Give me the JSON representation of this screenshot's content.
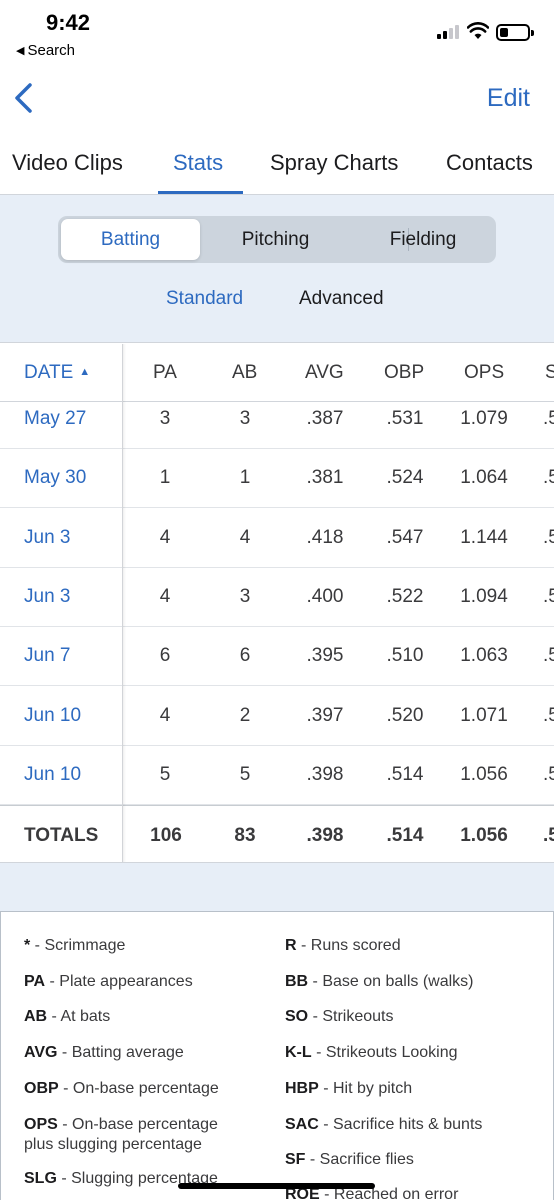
{
  "status_bar": {
    "time": "9:42",
    "back_app": "Search"
  },
  "nav": {
    "edit_label": "Edit"
  },
  "tabs": [
    {
      "label": "Video Clips",
      "active": false
    },
    {
      "label": "Stats",
      "active": true
    },
    {
      "label": "Spray Charts",
      "active": false
    },
    {
      "label": "Contacts",
      "active": false
    }
  ],
  "segments": [
    {
      "label": "Batting",
      "active": true
    },
    {
      "label": "Pitching",
      "active": false
    },
    {
      "label": "Fielding",
      "active": false
    }
  ],
  "subtabs": [
    {
      "label": "Standard",
      "active": true
    },
    {
      "label": "Advanced",
      "active": false
    }
  ],
  "table": {
    "columns": [
      "DATE",
      "PA",
      "AB",
      "AVG",
      "OBP",
      "OPS",
      "S"
    ],
    "rows": [
      {
        "date": "May 27",
        "pa": "3",
        "ab": "3",
        "avg": ".387",
        "obp": ".531",
        "ops": "1.079",
        "s": ".5"
      },
      {
        "date": "May 30",
        "pa": "1",
        "ab": "1",
        "avg": ".381",
        "obp": ".524",
        "ops": "1.064",
        "s": ".5"
      },
      {
        "date": "Jun 3",
        "pa": "4",
        "ab": "4",
        "avg": ".418",
        "obp": ".547",
        "ops": "1.144",
        "s": ".5"
      },
      {
        "date": "Jun 3",
        "pa": "4",
        "ab": "3",
        "avg": ".400",
        "obp": ".522",
        "ops": "1.094",
        "s": ".5"
      },
      {
        "date": "Jun 7",
        "pa": "6",
        "ab": "6",
        "avg": ".395",
        "obp": ".510",
        "ops": "1.063",
        "s": ".5"
      },
      {
        "date": "Jun 10",
        "pa": "4",
        "ab": "2",
        "avg": ".397",
        "obp": ".520",
        "ops": "1.071",
        "s": ".5"
      },
      {
        "date": "Jun 10",
        "pa": "5",
        "ab": "5",
        "avg": ".398",
        "obp": ".514",
        "ops": "1.056",
        "s": ".5"
      }
    ],
    "totals": {
      "date": "TOTALS",
      "pa": "106",
      "ab": "83",
      "avg": ".398",
      "obp": ".514",
      "ops": "1.056",
      "s": ".5"
    }
  },
  "legend": {
    "left": [
      {
        "abbr": "*",
        "desc": " - Scrimmage"
      },
      {
        "abbr": "PA",
        "desc": " - Plate appearances"
      },
      {
        "abbr": "AB",
        "desc": " - At bats"
      },
      {
        "abbr": "AVG",
        "desc": " - Batting average"
      },
      {
        "abbr": "OBP",
        "desc": " - On-base percentage"
      },
      {
        "abbr": "OPS",
        "desc": " - On-base percentage",
        "desc2": "plus slugging percentage"
      },
      {
        "abbr": "SLG",
        "desc": " - Slugging percentage"
      }
    ],
    "right": [
      {
        "abbr": "R",
        "desc": " - Runs scored"
      },
      {
        "abbr": "BB",
        "desc": " - Base on balls (walks)"
      },
      {
        "abbr": "SO",
        "desc": " - Strikeouts"
      },
      {
        "abbr": "K-L",
        "desc": " - Strikeouts Looking"
      },
      {
        "abbr": "HBP",
        "desc": " - Hit by pitch"
      },
      {
        "abbr": "SAC",
        "desc": " - Sacrifice hits & bunts"
      },
      {
        "abbr": "SF",
        "desc": " - Sacrifice flies"
      },
      {
        "abbr": "ROE",
        "desc": " - Reached on error"
      }
    ]
  },
  "colors": {
    "accent": "#2d6ac0",
    "filter_bg": "#e7eef7"
  }
}
